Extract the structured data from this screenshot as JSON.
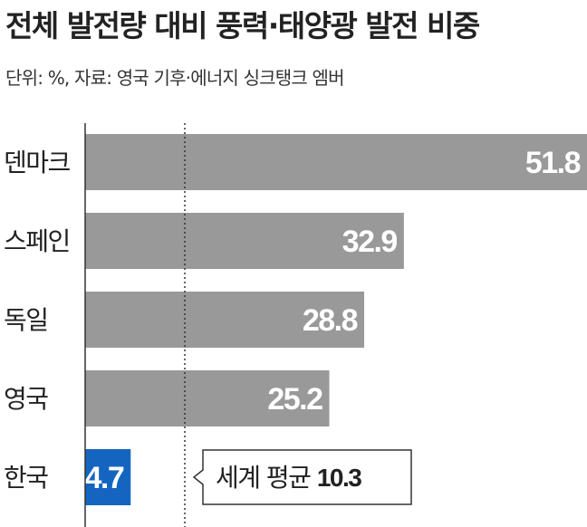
{
  "title": "전체 발전량 대비 풍력·태양광 발전 비중",
  "subtitle": "단위: %, 자료: 영국 기후·에너지 싱크탱크 엠버",
  "colors": {
    "bar": "#999999",
    "highlight": "#1565c0",
    "axis": "#333333",
    "text": "#222222"
  },
  "chart_data": {
    "type": "bar",
    "orientation": "horizontal",
    "categories": [
      "덴마크",
      "스페인",
      "독일",
      "영국",
      "한국"
    ],
    "values": [
      51.8,
      32.9,
      28.8,
      25.2,
      4.7
    ],
    "highlight_category": "한국",
    "reference_line": {
      "label": "세계 평균",
      "value": 10.3
    },
    "xlim": [
      0,
      51.8
    ]
  }
}
